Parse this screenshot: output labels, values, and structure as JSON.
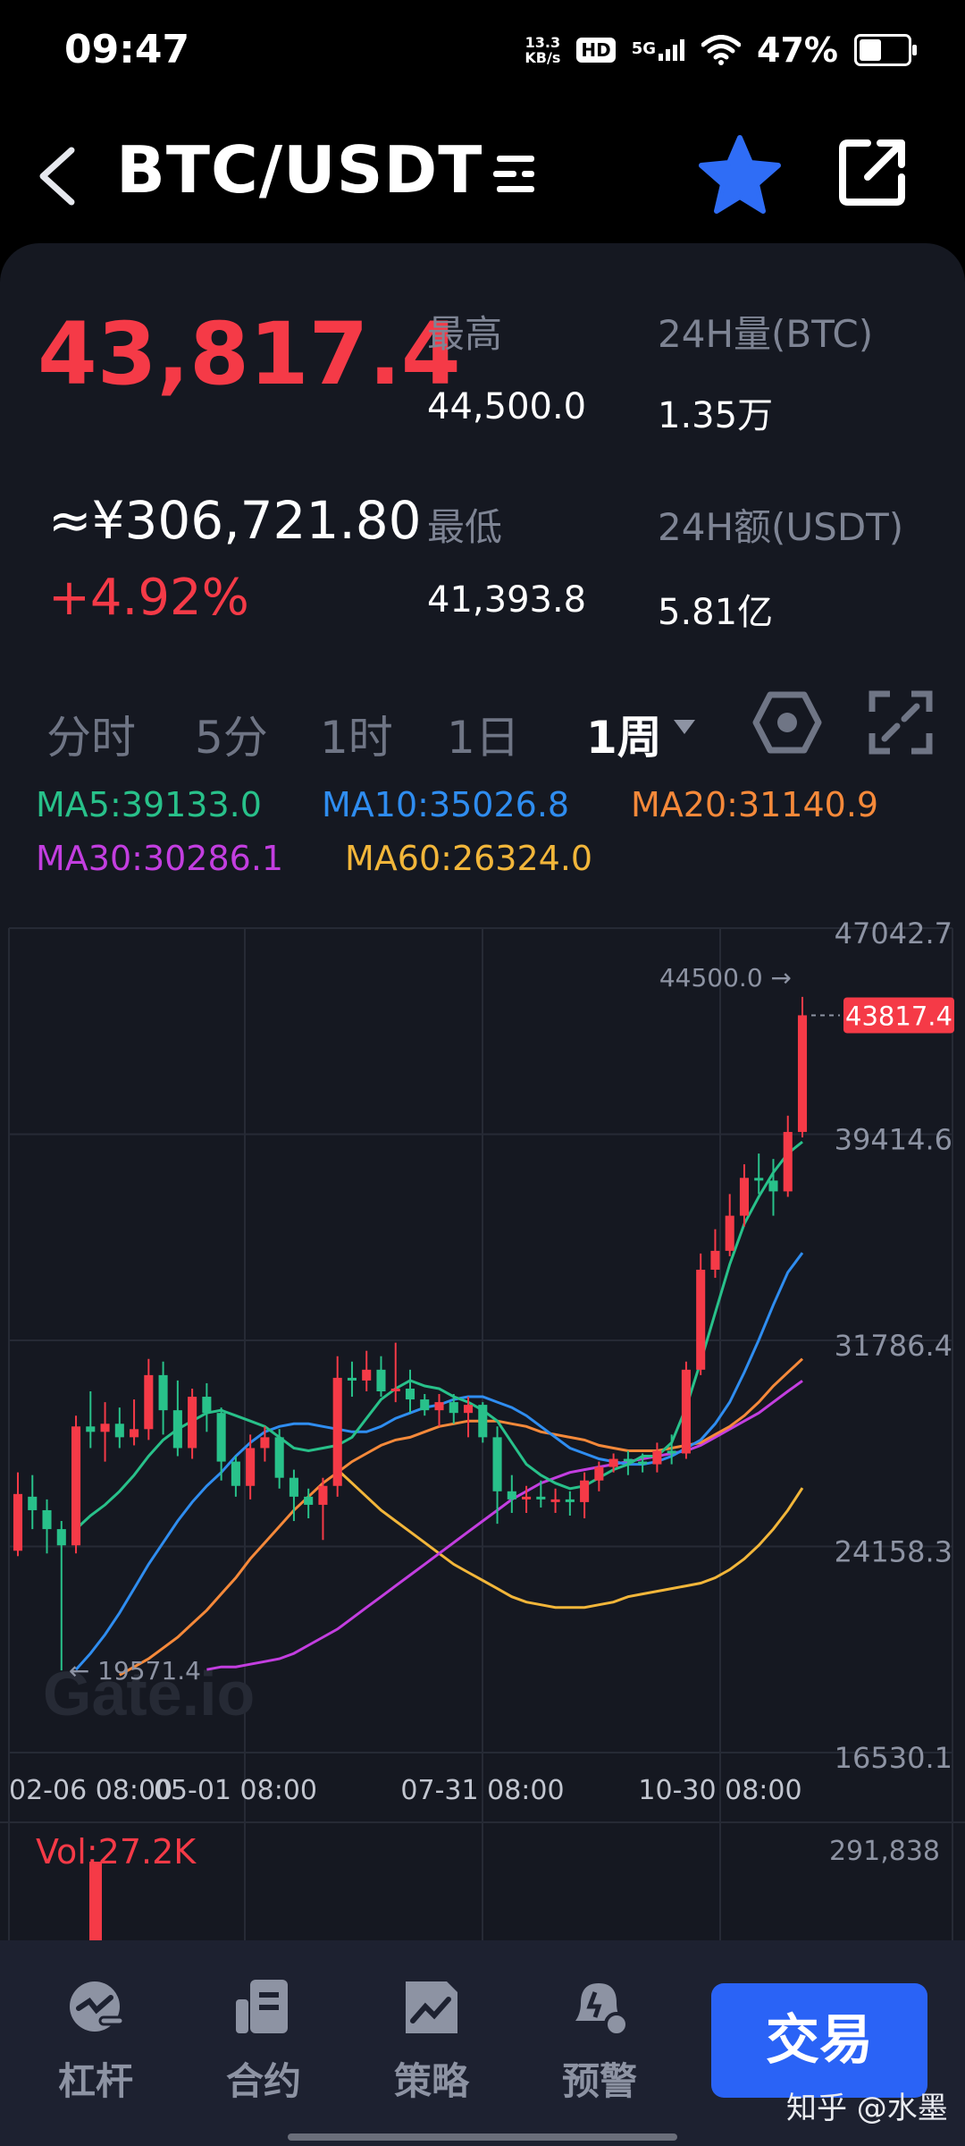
{
  "status_bar": {
    "time": "09:47",
    "net_speed_value": "13.3",
    "net_speed_unit": "KB/s",
    "hd": "HD",
    "network": "5G",
    "battery": "47%",
    "battery_level": 0.47
  },
  "header": {
    "title": "BTC/USDT",
    "icons": [
      "back-icon",
      "list-menu-icon",
      "star-icon",
      "share-icon"
    ],
    "favorite_color": "#2f6df6"
  },
  "ticker": {
    "last_price": "43,817.4",
    "cny_price": "≈¥306,721.80",
    "change": "+4.92%",
    "high_label": "最高",
    "high_value": "44,500.0",
    "low_label": "最低",
    "low_value": "41,393.8",
    "vol_label": "24H量(BTC)",
    "vol_value": "1.35万",
    "amount_label": "24H额(USDT)",
    "amount_value": "5.81亿",
    "up_color": "#f53a47"
  },
  "timeframes": {
    "items": [
      "分时",
      "5分",
      "1时",
      "1日",
      "1周"
    ],
    "active": "1周"
  },
  "indicators": {
    "ma5": "MA5:39133.0",
    "ma10": "MA10:35026.8",
    "ma20": "MA20:31140.9",
    "ma30": "MA30:30286.1",
    "ma60": "MA60:26324.0",
    "colors": {
      "ma5": "#28c18a",
      "ma10": "#2f8df0",
      "ma20": "#f5893a",
      "ma30": "#c33ee0",
      "ma60": "#f2b63a"
    }
  },
  "chart_data": {
    "type": "candlestick",
    "y_ticks": [
      "47042.7",
      "39414.6",
      "31786.4",
      "24158.3",
      "16530.1"
    ],
    "ylim": [
      16530.1,
      47042.7
    ],
    "x_ticks": [
      "02-06 08:00",
      "05-01 08:00",
      "07-31 08:00",
      "10-30 08:00"
    ],
    "high_marker": "44500.0",
    "high_marker_value": 44500.0,
    "low_marker": "19571.4",
    "low_marker_value": 19571.4,
    "last_price_tag": "43817.4",
    "last_price_value": 43817.4,
    "watermark": "Gate.io",
    "candles": [
      [
        24000,
        26100,
        23800,
        26900
      ],
      [
        26000,
        25500,
        24800,
        26800
      ],
      [
        25500,
        24800,
        23900,
        25900
      ],
      [
        24800,
        24200,
        19571.4,
        25100
      ],
      [
        24200,
        28600,
        23900,
        29000
      ],
      [
        28600,
        28400,
        27800,
        29900
      ],
      [
        28400,
        28700,
        27300,
        29500
      ],
      [
        28700,
        28200,
        27800,
        29300
      ],
      [
        28200,
        28500,
        27900,
        29600
      ],
      [
        28500,
        30500,
        28100,
        31100
      ],
      [
        30500,
        29200,
        28300,
        31000
      ],
      [
        29200,
        27800,
        27500,
        30300
      ],
      [
        27800,
        29700,
        27400,
        30000
      ],
      [
        29700,
        29100,
        28400,
        30200
      ],
      [
        29100,
        27300,
        26600,
        29300
      ],
      [
        27300,
        26400,
        26000,
        27500
      ],
      [
        26400,
        27800,
        25900,
        28300
      ],
      [
        27800,
        28200,
        27300,
        28600
      ],
      [
        28200,
        26700,
        26300,
        28500
      ],
      [
        26700,
        26000,
        25100,
        27000
      ],
      [
        26000,
        25700,
        25200,
        26300
      ],
      [
        25700,
        26400,
        24400,
        26700
      ],
      [
        26400,
        30400,
        26000,
        31200
      ],
      [
        30400,
        30300,
        29700,
        31000
      ],
      [
        30300,
        30700,
        29900,
        31400
      ],
      [
        30700,
        29900,
        29700,
        31200
      ],
      [
        29900,
        30000,
        29500,
        31700
      ],
      [
        30000,
        29600,
        29100,
        30700
      ],
      [
        29600,
        29200,
        29000,
        29800
      ],
      [
        29200,
        29500,
        28600,
        29800
      ],
      [
        29500,
        29100,
        28700,
        29800
      ],
      [
        29100,
        29400,
        28200,
        29700
      ],
      [
        29400,
        28200,
        28000,
        29500
      ],
      [
        28200,
        26200,
        25000,
        28600
      ],
      [
        26200,
        25900,
        25400,
        26800
      ],
      [
        25900,
        26000,
        25400,
        26400
      ],
      [
        26000,
        25900,
        25600,
        26600
      ],
      [
        25900,
        25900,
        25400,
        26300
      ],
      [
        25900,
        25800,
        25300,
        26200
      ],
      [
        25800,
        26600,
        25200,
        26900
      ],
      [
        26600,
        27100,
        26200,
        27300
      ],
      [
        27100,
        27400,
        26900,
        27600
      ],
      [
        27400,
        27300,
        26800,
        27700
      ],
      [
        27300,
        27200,
        26900,
        27600
      ],
      [
        27200,
        27700,
        26900,
        28000
      ],
      [
        27700,
        27600,
        27200,
        28300
      ],
      [
        27600,
        30700,
        27400,
        31000
      ],
      [
        30700,
        34400,
        30500,
        35000
      ],
      [
        34400,
        35100,
        34100,
        35900
      ],
      [
        35100,
        36400,
        34900,
        37200
      ],
      [
        36400,
        37800,
        36000,
        38300
      ],
      [
        37800,
        37700,
        37200,
        38700
      ],
      [
        37700,
        37300,
        36400,
        38500
      ],
      [
        37300,
        39500,
        37100,
        40100
      ],
      [
        39500,
        43817.4,
        39300,
        44500
      ]
    ],
    "ma5": [
      24800,
      25300,
      25700,
      26200,
      26800,
      27500,
      28100,
      28500,
      28800,
      29100,
      29200,
      29000,
      28800,
      28600,
      28200,
      27800,
      27700,
      27800,
      27900,
      28200,
      28900,
      29600,
      30000,
      30300,
      30100,
      30000,
      29700,
      29500,
      29200,
      28800,
      28000,
      27200,
      26800,
      26500,
      26300,
      26400,
      26700,
      27000,
      27200,
      27500,
      27500,
      28000,
      29300,
      31000,
      32800,
      34600,
      36100,
      37100,
      38000,
      38700,
      39133
    ],
    "ma10": [
      19600,
      20200,
      20900,
      21700,
      22600,
      23500,
      24300,
      25100,
      25800,
      26400,
      26900,
      27500,
      28000,
      28400,
      28600,
      28700,
      28700,
      28600,
      28500,
      28400,
      28400,
      28600,
      28900,
      29100,
      29300,
      29400,
      29600,
      29700,
      29700,
      29500,
      29300,
      29000,
      28600,
      28200,
      27800,
      27600,
      27400,
      27300,
      27200,
      27200,
      27300,
      27500,
      27800,
      28100,
      28700,
      29500,
      30600,
      31800,
      33100,
      34300,
      35027
    ],
    "ma20": [
      19400,
      19700,
      20000,
      20400,
      20800,
      21300,
      21800,
      22400,
      23000,
      23700,
      24300,
      24900,
      25500,
      26000,
      26500,
      26900,
      27300,
      27600,
      27900,
      28100,
      28200,
      28400,
      28600,
      28700,
      28800,
      28800,
      28800,
      28700,
      28600,
      28400,
      28300,
      28200,
      28100,
      27900,
      27800,
      27700,
      27700,
      27700,
      27800,
      27900,
      28000,
      28300,
      28600,
      29000,
      29500,
      30100,
      30600,
      31100
    ],
    "ma30": [
      19600,
      19700,
      19700,
      19800,
      19900,
      20000,
      20200,
      20500,
      20800,
      21100,
      21500,
      21900,
      22300,
      22700,
      23100,
      23500,
      23900,
      24300,
      24700,
      25100,
      25500,
      25900,
      26200,
      26500,
      26700,
      26900,
      27000,
      27100,
      27200,
      27300,
      27400,
      27500,
      27600,
      27700,
      27900,
      28200,
      28500,
      28800,
      29100,
      29500,
      29900,
      30286
    ],
    "ma60": [
      27000,
      26500,
      26000,
      25500,
      25100,
      24700,
      24300,
      23900,
      23500,
      23200,
      22900,
      22600,
      22300,
      22100,
      22000,
      21900,
      21900,
      21900,
      22000,
      22100,
      22300,
      22400,
      22500,
      22600,
      22700,
      22800,
      23000,
      23300,
      23700,
      24200,
      24800,
      25500,
      26324
    ],
    "volume_label": "Vol:27.2K",
    "volume_tick": "291,838"
  },
  "bottom_nav": {
    "items": [
      {
        "label": "杠杆",
        "icon": "leverage-icon"
      },
      {
        "label": "合约",
        "icon": "contract-icon"
      },
      {
        "label": "策略",
        "icon": "strategy-icon"
      },
      {
        "label": "预警",
        "icon": "alert-icon"
      }
    ],
    "trade_button": "交易"
  },
  "watermark_text": "知乎 @水墨"
}
